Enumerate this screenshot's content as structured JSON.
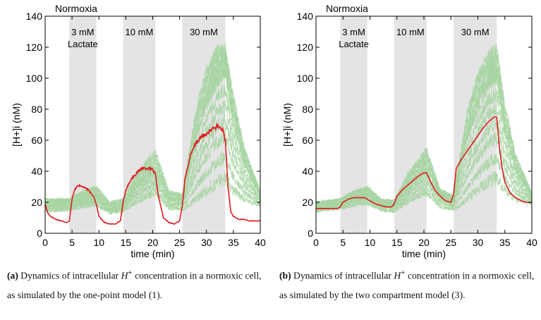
{
  "chart_data": [
    {
      "type": "line",
      "panel": "a",
      "title": "Normoxia",
      "xlabel": "time (min)",
      "ylabel": "[H+]i (nM)",
      "xlim": [
        0,
        40
      ],
      "ylim": [
        0,
        140
      ],
      "xticks": [
        0,
        5,
        10,
        15,
        20,
        25,
        30,
        35,
        40
      ],
      "yticks": [
        0,
        20,
        40,
        60,
        80,
        100,
        120,
        140
      ],
      "shaded_intervals": [
        {
          "start": 4.5,
          "end": 9.5,
          "label": "3 mM",
          "label2": "Lactate"
        },
        {
          "start": 14.5,
          "end": 20.5,
          "label": "10 mM",
          "label2": ""
        },
        {
          "start": 25.5,
          "end": 33.5,
          "label": "30 mM",
          "label2": ""
        }
      ],
      "series": [
        {
          "name": "simulated cell (red)",
          "color": "#e0191b",
          "x": [
            0,
            0.5,
            1,
            2,
            3,
            4,
            4.5,
            5,
            5.5,
            6,
            7,
            8,
            9,
            9.5,
            10,
            11,
            12,
            13,
            14,
            14.5,
            15,
            16,
            17,
            18,
            19,
            20,
            20.5,
            21,
            22,
            23,
            24,
            25,
            25.5,
            26,
            27,
            28,
            29,
            30,
            31,
            32,
            33,
            33.5,
            34,
            34.5,
            35,
            36,
            37,
            38,
            39,
            40
          ],
          "y": [
            19,
            13,
            11,
            9,
            8,
            7,
            8,
            22,
            28,
            31,
            30,
            28,
            24,
            19,
            11,
            7,
            6,
            6,
            8,
            20,
            28,
            35,
            39,
            42,
            42,
            41,
            38,
            25,
            10,
            7,
            6,
            8,
            18,
            35,
            50,
            58,
            62,
            64,
            67,
            69,
            67,
            60,
            30,
            14,
            11,
            9,
            9,
            8,
            8,
            8
          ]
        },
        {
          "name": "population mean (green)",
          "color": "#a5d3a0",
          "x": [
            0,
            4.5,
            7,
            9.5,
            12,
            14.5,
            17,
            20.5,
            23,
            25.5,
            28,
            30,
            32,
            33.5,
            35,
            37,
            40
          ],
          "y": [
            18,
            19,
            22,
            24,
            16,
            18,
            30,
            40,
            22,
            20,
            60,
            82,
            98,
            103,
            70,
            45,
            24
          ]
        },
        {
          "name": "population upper (green)",
          "color": "#a5d3a0",
          "x": [
            0,
            4.5,
            7,
            9.5,
            12,
            14.5,
            17,
            20.5,
            23,
            25.5,
            28,
            30,
            32,
            33.5,
            35,
            37,
            40
          ],
          "y": [
            22,
            22,
            27,
            30,
            20,
            22,
            38,
            53,
            27,
            25,
            78,
            105,
            118,
            118,
            88,
            55,
            27
          ]
        },
        {
          "name": "population lower (green)",
          "color": "#a5d3a0",
          "x": [
            0,
            4.5,
            7,
            9.5,
            12,
            14.5,
            17,
            20.5,
            23,
            25.5,
            28,
            30,
            32,
            33.5,
            35,
            37,
            40
          ],
          "y": [
            14,
            15,
            17,
            18,
            13,
            14,
            20,
            26,
            16,
            15,
            22,
            28,
            33,
            36,
            28,
            22,
            18
          ]
        }
      ]
    },
    {
      "type": "line",
      "panel": "b",
      "title": "Normoxia",
      "xlabel": "time (min)",
      "ylabel": "[H+]i (nM)",
      "xlim": [
        0,
        40
      ],
      "ylim": [
        0,
        140
      ],
      "xticks": [
        0,
        5,
        10,
        15,
        20,
        25,
        30,
        35,
        40
      ],
      "yticks": [
        0,
        20,
        40,
        60,
        80,
        100,
        120,
        140
      ],
      "shaded_intervals": [
        {
          "start": 4.5,
          "end": 9.5,
          "label": "3 mM",
          "label2": "Lactate"
        },
        {
          "start": 14.5,
          "end": 20.5,
          "label": "10 mM",
          "label2": ""
        },
        {
          "start": 25.5,
          "end": 33.5,
          "label": "30 mM",
          "label2": ""
        }
      ],
      "series": [
        {
          "name": "simulated cell (red)",
          "color": "#e0191b",
          "x": [
            0,
            2,
            4,
            4.5,
            5,
            6,
            7,
            8,
            9,
            9.5,
            10,
            11,
            12,
            13,
            14,
            14.5,
            15,
            16,
            17,
            18,
            19,
            20,
            20.5,
            21,
            22,
            23,
            24,
            25,
            25.5,
            26,
            27,
            28,
            29,
            30,
            31,
            32,
            33,
            33.5,
            34,
            34.5,
            35,
            36,
            37,
            38,
            39,
            40
          ],
          "y": [
            16,
            16,
            16,
            17,
            20,
            22,
            23,
            23,
            23,
            22,
            21,
            19,
            18,
            17,
            17,
            19,
            24,
            28,
            31,
            34,
            37,
            39,
            39,
            35,
            28,
            24,
            21,
            20,
            25,
            42,
            48,
            53,
            58,
            63,
            68,
            72,
            75,
            75,
            55,
            42,
            33,
            26,
            23,
            21,
            20,
            20
          ]
        },
        {
          "name": "population mean (green)",
          "color": "#a5d3a0",
          "x": [
            0,
            4.5,
            7,
            9.5,
            12,
            14.5,
            17,
            20.5,
            23,
            25.5,
            28,
            30,
            32,
            33.5,
            35,
            37,
            40
          ],
          "y": [
            17,
            19,
            23,
            25,
            19,
            18,
            30,
            42,
            24,
            20,
            60,
            80,
            96,
            100,
            65,
            40,
            23
          ]
        },
        {
          "name": "population upper (green)",
          "color": "#a5d3a0",
          "x": [
            0,
            4.5,
            7,
            9.5,
            12,
            14.5,
            17,
            20.5,
            23,
            25.5,
            28,
            30,
            32,
            33.5,
            35,
            37,
            40
          ],
          "y": [
            20,
            22,
            27,
            30,
            22,
            21,
            38,
            54,
            28,
            24,
            78,
            102,
            115,
            118,
            82,
            50,
            26
          ]
        },
        {
          "name": "population lower (green)",
          "color": "#a5d3a0",
          "x": [
            0,
            4.5,
            7,
            9.5,
            12,
            14.5,
            17,
            20.5,
            23,
            25.5,
            28,
            30,
            32,
            33.5,
            35,
            37,
            40
          ],
          "y": [
            14,
            16,
            18,
            19,
            15,
            14,
            20,
            26,
            17,
            15,
            22,
            28,
            33,
            36,
            28,
            22,
            19
          ]
        }
      ]
    }
  ],
  "captions": [
    {
      "label": "(a)",
      "text_pre": "Dynamics of intracellular",
      "math": "H",
      "sup": "+",
      "text_post": "concentration in a normoxic cell, as simulated by the one-point model (1)."
    },
    {
      "label": "(b)",
      "text_pre": "Dynamics of intracellular",
      "math": "H",
      "sup": "+",
      "text_post": "concentration in a normoxic cell, as simulated by the two compartment model (3)."
    }
  ],
  "colors": {
    "shade": "#e4e4e4",
    "red": "#e0191b",
    "green": "#a5d3a0",
    "axis": "#000000"
  }
}
